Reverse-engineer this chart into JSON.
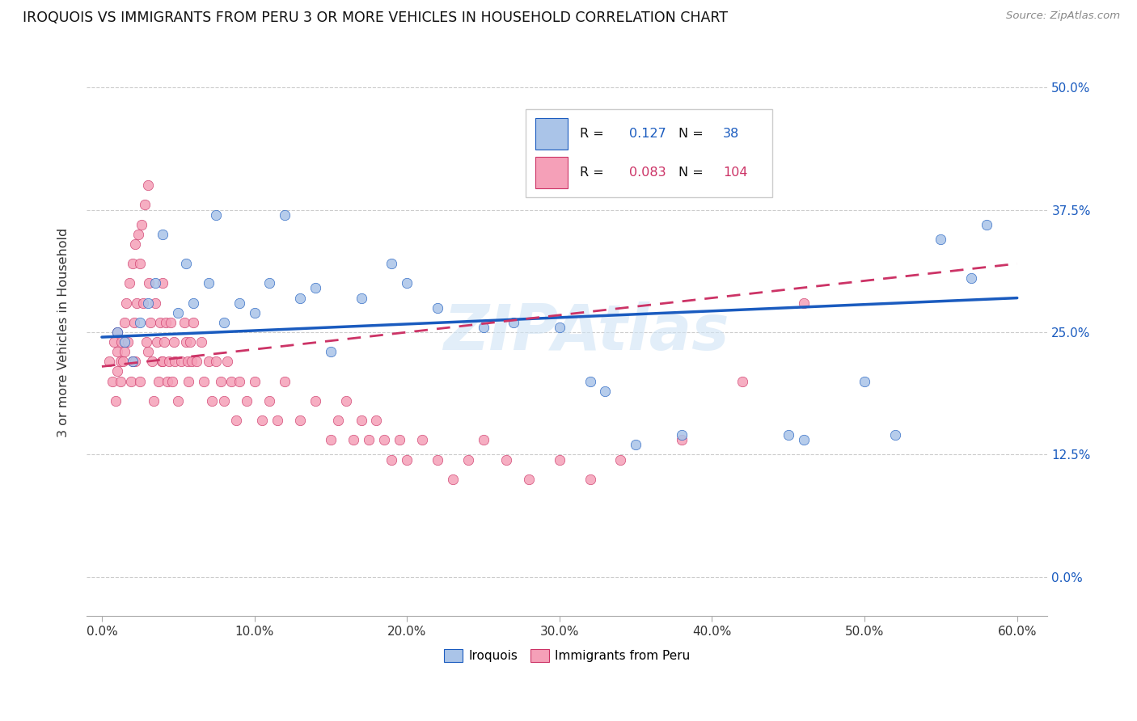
{
  "title": "IROQUOIS VS IMMIGRANTS FROM PERU 3 OR MORE VEHICLES IN HOUSEHOLD CORRELATION CHART",
  "source": "Source: ZipAtlas.com",
  "R_iroquois": 0.127,
  "N_iroquois": 38,
  "R_peru": 0.083,
  "N_peru": 104,
  "color_iroquois": "#aac4e8",
  "color_peru": "#f5a0b8",
  "line_color_iroquois": "#1a5bbf",
  "line_color_peru": "#cc3366",
  "watermark": "ZIPAtlas",
  "legend_label_iroquois": "Iroquois",
  "legend_label_peru": "Immigrants from Peru",
  "xmin": 0.0,
  "xmax": 0.6,
  "ymin": 0.0,
  "ymax": 0.5,
  "x_tick_vals": [
    0.0,
    0.1,
    0.2,
    0.3,
    0.4,
    0.5,
    0.6
  ],
  "x_tick_labels": [
    "0.0%",
    "10.0%",
    "20.0%",
    "30.0%",
    "40.0%",
    "50.0%",
    "60.0%"
  ],
  "y_tick_vals": [
    0.0,
    0.125,
    0.25,
    0.375,
    0.5
  ],
  "y_tick_labels": [
    "0.0%",
    "12.5%",
    "25.0%",
    "37.5%",
    "50.0%"
  ],
  "iroquois_x": [
    0.01,
    0.015,
    0.02,
    0.025,
    0.03,
    0.035,
    0.04,
    0.05,
    0.055,
    0.06,
    0.07,
    0.075,
    0.08,
    0.09,
    0.1,
    0.11,
    0.12,
    0.13,
    0.14,
    0.15,
    0.17,
    0.19,
    0.2,
    0.22,
    0.25,
    0.27,
    0.3,
    0.32,
    0.33,
    0.35,
    0.38,
    0.45,
    0.46,
    0.5,
    0.52,
    0.55,
    0.57,
    0.58
  ],
  "iroquois_y": [
    0.25,
    0.24,
    0.22,
    0.26,
    0.28,
    0.3,
    0.35,
    0.27,
    0.32,
    0.28,
    0.3,
    0.37,
    0.26,
    0.28,
    0.27,
    0.3,
    0.37,
    0.285,
    0.295,
    0.23,
    0.285,
    0.32,
    0.3,
    0.275,
    0.255,
    0.26,
    0.255,
    0.2,
    0.19,
    0.135,
    0.145,
    0.145,
    0.14,
    0.2,
    0.145,
    0.345,
    0.305,
    0.36
  ],
  "peru_x": [
    0.005,
    0.007,
    0.008,
    0.009,
    0.01,
    0.01,
    0.01,
    0.012,
    0.012,
    0.013,
    0.014,
    0.015,
    0.015,
    0.016,
    0.017,
    0.018,
    0.019,
    0.02,
    0.02,
    0.021,
    0.022,
    0.022,
    0.023,
    0.024,
    0.025,
    0.025,
    0.026,
    0.027,
    0.028,
    0.029,
    0.03,
    0.03,
    0.031,
    0.032,
    0.033,
    0.034,
    0.035,
    0.036,
    0.037,
    0.038,
    0.039,
    0.04,
    0.04,
    0.041,
    0.042,
    0.043,
    0.044,
    0.045,
    0.046,
    0.047,
    0.048,
    0.05,
    0.052,
    0.054,
    0.055,
    0.056,
    0.057,
    0.058,
    0.059,
    0.06,
    0.062,
    0.065,
    0.067,
    0.07,
    0.072,
    0.075,
    0.078,
    0.08,
    0.082,
    0.085,
    0.088,
    0.09,
    0.095,
    0.1,
    0.105,
    0.11,
    0.115,
    0.12,
    0.13,
    0.14,
    0.15,
    0.155,
    0.16,
    0.165,
    0.17,
    0.175,
    0.18,
    0.185,
    0.19,
    0.195,
    0.2,
    0.21,
    0.22,
    0.23,
    0.24,
    0.25,
    0.265,
    0.28,
    0.3,
    0.32,
    0.34,
    0.38,
    0.42,
    0.46
  ],
  "peru_y": [
    0.22,
    0.2,
    0.24,
    0.18,
    0.23,
    0.21,
    0.25,
    0.22,
    0.2,
    0.24,
    0.22,
    0.26,
    0.23,
    0.28,
    0.24,
    0.3,
    0.2,
    0.32,
    0.22,
    0.26,
    0.34,
    0.22,
    0.28,
    0.35,
    0.32,
    0.2,
    0.36,
    0.28,
    0.38,
    0.24,
    0.4,
    0.23,
    0.3,
    0.26,
    0.22,
    0.18,
    0.28,
    0.24,
    0.2,
    0.26,
    0.22,
    0.3,
    0.22,
    0.24,
    0.26,
    0.2,
    0.22,
    0.26,
    0.2,
    0.24,
    0.22,
    0.18,
    0.22,
    0.26,
    0.24,
    0.22,
    0.2,
    0.24,
    0.22,
    0.26,
    0.22,
    0.24,
    0.2,
    0.22,
    0.18,
    0.22,
    0.2,
    0.18,
    0.22,
    0.2,
    0.16,
    0.2,
    0.18,
    0.2,
    0.16,
    0.18,
    0.16,
    0.2,
    0.16,
    0.18,
    0.14,
    0.16,
    0.18,
    0.14,
    0.16,
    0.14,
    0.16,
    0.14,
    0.12,
    0.14,
    0.12,
    0.14,
    0.12,
    0.1,
    0.12,
    0.14,
    0.12,
    0.1,
    0.12,
    0.1,
    0.12,
    0.14,
    0.2,
    0.28
  ]
}
